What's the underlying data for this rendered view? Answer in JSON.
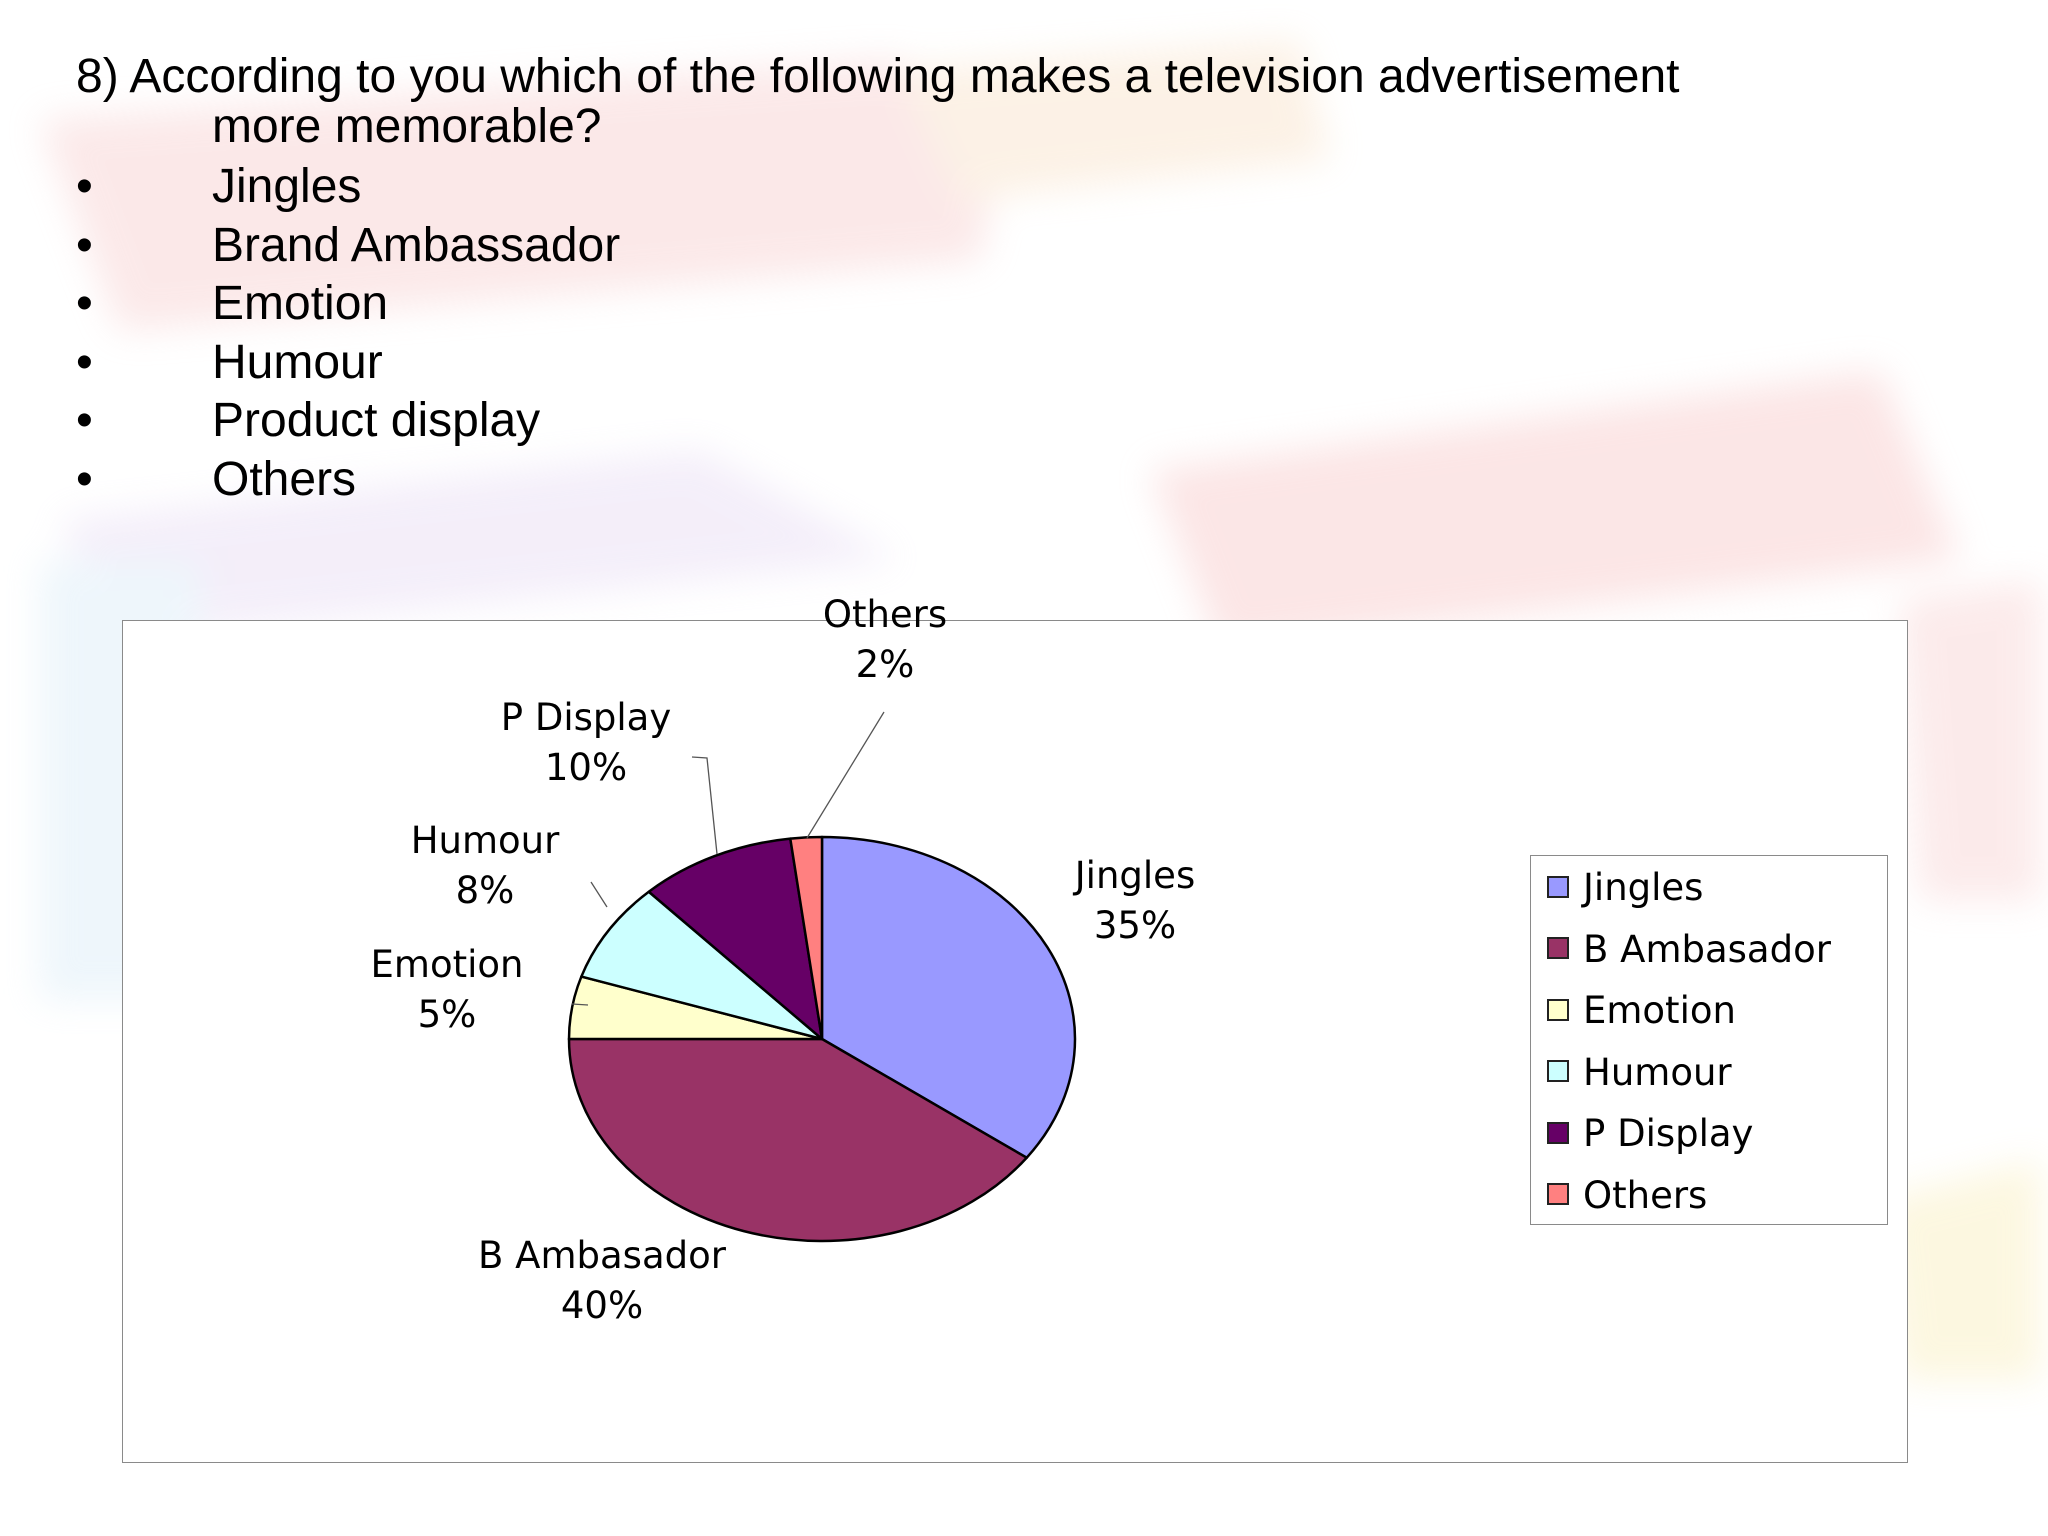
{
  "question": {
    "line1": "8) According to you which of the following makes a television advertisement",
    "line2": "more memorable?"
  },
  "options": [
    {
      "bullet": "•",
      "label": "Jingles"
    },
    {
      "bullet": "•",
      "label": "Brand Ambassador"
    },
    {
      "bullet": "•",
      "label": "Emotion"
    },
    {
      "bullet": "•",
      "label": "Humour"
    },
    {
      "bullet": "•",
      "label": "Product display"
    },
    {
      "bullet": "•",
      "label": "Others"
    }
  ],
  "chart_data": {
    "type": "pie",
    "title": "",
    "slices": [
      {
        "name": "Jingles",
        "value": 35,
        "label": "35%",
        "color": "#9999ff"
      },
      {
        "name": "B Ambasador",
        "value": 40,
        "label": "40%",
        "color": "#993366"
      },
      {
        "name": "Emotion",
        "value": 5,
        "label": "5%",
        "color": "#ffffcc"
      },
      {
        "name": "Humour",
        "value": 8,
        "label": "8%",
        "color": "#ccffff"
      },
      {
        "name": "P Display",
        "value": 10,
        "label": "10%",
        "color": "#660066"
      },
      {
        "name": "Others",
        "value": 2,
        "label": "2%",
        "color": "#ff8080"
      }
    ],
    "legend_position": "right"
  }
}
